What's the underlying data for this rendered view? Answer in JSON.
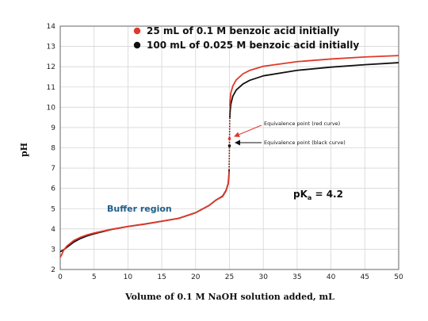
{
  "chart_data": {
    "type": "line",
    "xlabel": "Volume of 0.1 M NaOH solution added, mL",
    "ylabel": "pH",
    "xlim": [
      0,
      50
    ],
    "ylim": [
      2,
      14
    ],
    "x_ticks": [
      "0",
      "5",
      "10",
      "15",
      "20",
      "25",
      "30",
      "35",
      "40",
      "45",
      "50"
    ],
    "y_ticks": [
      "2",
      "3",
      "4",
      "5",
      "6",
      "7",
      "8",
      "9",
      "10",
      "11",
      "12",
      "13",
      "14"
    ],
    "grid": true,
    "legend_position": "top-center",
    "series": [
      {
        "name": "25 mL of 0.1 M benzoic acid initially",
        "color": "#e0392b",
        "x": [
          0,
          0.25,
          0.5,
          1,
          2,
          3,
          4,
          5,
          7.5,
          10,
          12.5,
          15,
          17.5,
          20,
          22,
          23,
          24,
          24.5,
          24.8,
          24.9,
          24.95,
          25,
          25.05,
          25.1,
          25.2,
          25.5,
          26,
          27,
          28,
          30,
          35,
          40,
          45,
          50
        ],
        "y": [
          2.6,
          2.75,
          2.95,
          3.16,
          3.43,
          3.59,
          3.71,
          3.8,
          3.98,
          4.12,
          4.24,
          4.38,
          4.52,
          4.8,
          5.16,
          5.42,
          5.6,
          5.88,
          6.2,
          6.5,
          6.8,
          8.45,
          10.05,
          10.35,
          10.7,
          11.05,
          11.35,
          11.65,
          11.82,
          12.02,
          12.25,
          12.38,
          12.48,
          12.55
        ]
      },
      {
        "name": "100 mL of 0.025 M benzoic acid initially",
        "color": "#111111",
        "x": [
          0,
          0.25,
          0.5,
          1,
          2,
          3,
          4,
          5,
          7.5,
          10,
          12.5,
          15,
          17.5,
          20,
          22,
          23,
          24,
          24.5,
          24.8,
          24.9,
          24.95,
          25,
          25.05,
          25.1,
          25.2,
          25.5,
          26,
          27,
          28,
          30,
          35,
          40,
          45,
          50
        ],
        "y": [
          2.88,
          2.92,
          2.97,
          3.1,
          3.35,
          3.53,
          3.66,
          3.76,
          3.97,
          4.12,
          4.24,
          4.38,
          4.52,
          4.8,
          5.16,
          5.42,
          5.62,
          5.9,
          6.22,
          6.55,
          6.9,
          8.1,
          9.45,
          9.8,
          10.15,
          10.55,
          10.85,
          11.15,
          11.33,
          11.55,
          11.82,
          11.98,
          12.1,
          12.2
        ]
      }
    ],
    "equivalence_points": [
      {
        "label": "Equivalence point (red curve)",
        "x": 25,
        "y": 8.45,
        "color": "#e0392b"
      },
      {
        "label": "Equivalence point (black curve)",
        "x": 25,
        "y": 8.1,
        "color": "#111111"
      }
    ],
    "annotations": {
      "buffer_region": "Buffer region",
      "pka_text": "pK",
      "pka_sub": "a",
      "pka_value": " = 4.2"
    }
  }
}
